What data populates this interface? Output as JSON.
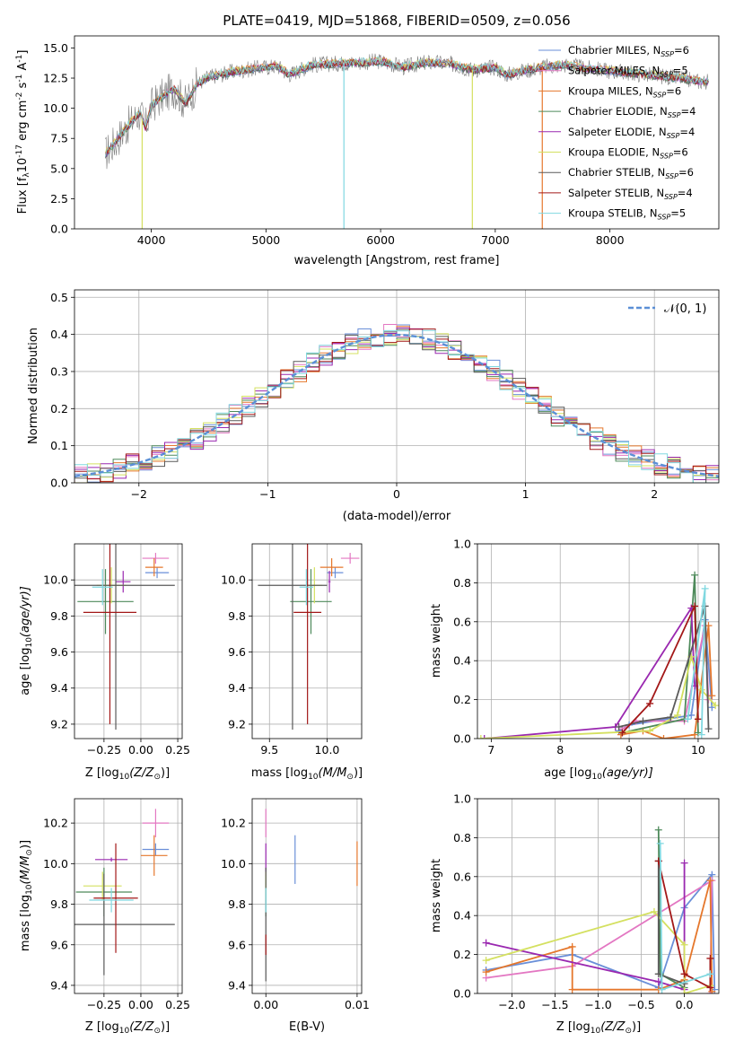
{
  "figure_title": "PLATE=0419, MJD=51868, FIBERID=0509, z=0.056",
  "colors": {
    "Chabrier MILES": "#6a8fd8",
    "Salpeter MILES": "#e377c2",
    "Kroupa MILES": "#e5772c",
    "Chabrier ELODIE": "#4e8a5b",
    "Salpeter ELODIE": "#9a28b0",
    "Kroupa ELODIE": "#d4e060",
    "Chabrier STELIB": "#5a5a5a",
    "Salpeter STELIB": "#a31818",
    "Kroupa STELIB": "#80d8e0",
    "data": "#7f7f7f"
  },
  "chart_data": [
    {
      "type": "line",
      "title": "PLATE=0419, MJD=51868, FIBERID=0509, z=0.056",
      "xlabel": "wavelength [Angstrom, rest frame]",
      "ylabel": "Flux [f",
      "ylabel_lambda": "λ",
      "ylabel_rest": "10",
      "ylabel_exp": "-17",
      "ylabel_units": " erg cm",
      "ylabel_units_exp": "-2",
      "ylabel_units2": " s",
      "ylabel_units2_exp": "-1",
      "ylabel_units3": " A",
      "ylabel_units3_exp": "-1",
      "ylabel_close": "]",
      "xlim": [
        3330,
        8950
      ],
      "ylim": [
        0,
        16
      ],
      "xticks": [
        4000,
        5000,
        6000,
        7000,
        8000
      ],
      "yticks": [
        0.0,
        2.5,
        5.0,
        7.5,
        10.0,
        12.5,
        15.0
      ],
      "grid": false,
      "legend_position": "top-right",
      "spectrum_trend": {
        "x": [
          3600,
          3700,
          3800,
          3900,
          3950,
          4000,
          4100,
          4200,
          4300,
          4400,
          4500,
          4700,
          4900,
          5100,
          5200,
          5400,
          5600,
          5800,
          6000,
          6200,
          6400,
          6600,
          6800,
          7000,
          7100,
          7200,
          7400,
          7600,
          7800,
          8000,
          8200,
          8400,
          8600,
          8800
        ],
        "y": [
          6.2,
          7.4,
          8.6,
          9.6,
          8.4,
          10.2,
          11.0,
          11.6,
          10.4,
          12.0,
          12.6,
          13.0,
          13.3,
          13.5,
          12.8,
          13.6,
          13.7,
          13.8,
          13.9,
          13.4,
          13.8,
          13.7,
          13.2,
          13.4,
          12.8,
          13.0,
          13.4,
          13.6,
          13.3,
          13.1,
          12.9,
          12.7,
          12.5,
          12.2
        ]
      },
      "series": [
        {
          "name": "Chabrier MILES",
          "n_ssp": "6"
        },
        {
          "name": "Salpeter MILES",
          "n_ssp": "5"
        },
        {
          "name": "Kroupa MILES",
          "n_ssp": "6"
        },
        {
          "name": "Chabrier ELODIE",
          "n_ssp": "4"
        },
        {
          "name": "Salpeter ELODIE",
          "n_ssp": "4"
        },
        {
          "name": "Kroupa ELODIE",
          "n_ssp": "6"
        },
        {
          "name": "Chabrier STELIB",
          "n_ssp": "6"
        },
        {
          "name": "Salpeter STELIB",
          "n_ssp": "4"
        },
        {
          "name": "Kroupa STELIB",
          "n_ssp": "5"
        }
      ],
      "legend_n_label": "N",
      "legend_n_sub": "SSP"
    },
    {
      "type": "line",
      "xlabel": "(data-model)/error",
      "ylabel": "Normed distribution",
      "xlim": [
        -2.5,
        2.5
      ],
      "ylim": [
        0,
        0.52
      ],
      "xticks": [
        -2,
        -1,
        0,
        1,
        2
      ],
      "xtick_labels": [
        "−2",
        "−1",
        "0",
        "1",
        "2"
      ],
      "yticks": [
        0.0,
        0.1,
        0.2,
        0.3,
        0.4,
        0.5
      ],
      "grid": true,
      "legend_position": "top-right",
      "reference_curve": {
        "name": "𝒩(0, 1)",
        "mu": 0,
        "sigma": 1
      },
      "bin_width": 0.1
    },
    {
      "type": "scatter",
      "xlabel": "Z [log",
      "xlabel_sub": "10",
      "xlabel_rest": "(Z/Z",
      "xlabel_sun": "⊙",
      "xlabel_close": ")]",
      "ylabel": "age  [log",
      "ylabel_sub": "10",
      "ylabel_rest": "(age/yr)]",
      "xlim": [
        -0.45,
        0.28
      ],
      "ylim": [
        9.12,
        10.2
      ],
      "xticks": [
        -0.25,
        0.0,
        0.25
      ],
      "xtick_labels": [
        "−0.25",
        "0.00",
        "0.25"
      ],
      "yticks": [
        9.2,
        9.4,
        9.6,
        9.8,
        10.0
      ],
      "points": [
        {
          "series": "Chabrier MILES",
          "x": 0.11,
          "xerr": 0.08,
          "y": 10.04,
          "yerr": 0.03
        },
        {
          "series": "Salpeter MILES",
          "x": 0.1,
          "xerr": 0.09,
          "y": 10.12,
          "yerr": 0.03
        },
        {
          "series": "Kroupa MILES",
          "x": 0.09,
          "xerr": 0.06,
          "y": 10.07,
          "yerr": 0.05
        },
        {
          "series": "Chabrier ELODIE",
          "x": -0.24,
          "xerr": 0.19,
          "y": 9.88,
          "yerr": 0.18
        },
        {
          "series": "Salpeter ELODIE",
          "x": -0.12,
          "xerr": 0.05,
          "y": 9.99,
          "yerr": 0.06
        },
        {
          "series": "Kroupa ELODIE",
          "x": -0.2,
          "xerr": 0.1,
          "y": 9.97,
          "yerr": 0.1
        },
        {
          "series": "Chabrier STELIB",
          "x": -0.17,
          "xerr": 0.4,
          "y": 9.97,
          "yerr": 0.8
        },
        {
          "series": "Salpeter STELIB",
          "x": -0.21,
          "xerr": 0.18,
          "y": 9.82,
          "yerr": 0.62
        },
        {
          "series": "Kroupa STELIB",
          "x": -0.26,
          "xerr": 0.07,
          "y": 9.96,
          "yerr": 0.1
        }
      ]
    },
    {
      "type": "scatter",
      "xlabel": "mass [log",
      "xlabel_sub": "10",
      "xlabel_rest": "(M/M",
      "xlabel_sun": "⊙",
      "xlabel_close": ")]",
      "xlim": [
        9.35,
        10.3
      ],
      "ylim": [
        9.12,
        10.2
      ],
      "xticks": [
        9.5,
        10.0
      ],
      "xtick_labels": [
        "9.5",
        "10.0"
      ],
      "yticks": [
        9.2,
        9.4,
        9.6,
        9.8,
        10.0
      ],
      "points": [
        {
          "series": "Chabrier MILES",
          "x": 10.07,
          "xerr": 0.07,
          "y": 10.04,
          "yerr": 0.03
        },
        {
          "series": "Salpeter MILES",
          "x": 10.2,
          "xerr": 0.08,
          "y": 10.12,
          "yerr": 0.03
        },
        {
          "series": "Kroupa MILES",
          "x": 10.04,
          "xerr": 0.1,
          "y": 10.07,
          "yerr": 0.05
        },
        {
          "series": "Chabrier ELODIE",
          "x": 9.86,
          "xerr": 0.18,
          "y": 9.88,
          "yerr": 0.18
        },
        {
          "series": "Salpeter ELODIE",
          "x": 10.02,
          "xerr": 0.01,
          "y": 9.99,
          "yerr": 0.06
        },
        {
          "series": "Kroupa ELODIE",
          "x": 9.89,
          "xerr": 0.07,
          "y": 9.97,
          "yerr": 0.1
        },
        {
          "series": "Chabrier STELIB",
          "x": 9.7,
          "xerr": 0.3,
          "y": 9.97,
          "yerr": 0.8
        },
        {
          "series": "Salpeter STELIB",
          "x": 9.83,
          "xerr": 0.12,
          "y": 9.82,
          "yerr": 0.62
        },
        {
          "series": "Kroupa STELIB",
          "x": 9.82,
          "xerr": 0.06,
          "y": 9.96,
          "yerr": 0.1
        }
      ]
    },
    {
      "type": "line",
      "xlabel": "age  [log",
      "xlabel_sub": "10",
      "xlabel_rest": "(age/yr)]",
      "ylabel": "mass weight",
      "xlim": [
        6.8,
        10.3
      ],
      "ylim": [
        0,
        1.0
      ],
      "xticks": [
        7,
        8,
        9,
        10
      ],
      "yticks": [
        0.0,
        0.2,
        0.4,
        0.6,
        0.8,
        1.0
      ],
      "grid": true,
      "series": [
        {
          "name": "Chabrier MILES",
          "x": [
            8.85,
            9.0,
            9.9,
            10.1,
            10.2
          ],
          "y": [
            0.04,
            0.07,
            0.12,
            0.61,
            0.16
          ]
        },
        {
          "name": "Salpeter MILES",
          "x": [
            8.9,
            9.1,
            9.8,
            10.1,
            10.15
          ],
          "y": [
            0.05,
            0.09,
            0.09,
            0.58,
            0.2
          ]
        },
        {
          "name": "Kroupa MILES",
          "x": [
            8.88,
            9.2,
            9.5,
            9.95,
            10.15,
            10.2
          ],
          "y": [
            0.02,
            0.04,
            0.0,
            0.02,
            0.58,
            0.22
          ]
        },
        {
          "name": "Chabrier ELODIE",
          "x": [
            8.9,
            9.8,
            9.95,
            10.0
          ],
          "y": [
            0.03,
            0.1,
            0.84,
            0.03
          ]
        },
        {
          "name": "Salpeter ELODIE",
          "x": [
            6.9,
            8.8,
            9.9,
            9.95
          ],
          "y": [
            0.0,
            0.06,
            0.67,
            0.27
          ]
        },
        {
          "name": "Kroupa ELODIE",
          "x": [
            6.85,
            9.3,
            9.7,
            9.9,
            10.05,
            10.25
          ],
          "y": [
            0.0,
            0.04,
            0.12,
            0.42,
            0.25,
            0.17
          ]
        },
        {
          "name": "Chabrier STELIB",
          "x": [
            8.85,
            9.2,
            9.6,
            10.1,
            10.15
          ],
          "y": [
            0.06,
            0.09,
            0.11,
            0.68,
            0.05
          ]
        },
        {
          "name": "Salpeter STELIB",
          "x": [
            8.9,
            9.3,
            9.95,
            10.0
          ],
          "y": [
            0.03,
            0.18,
            0.68,
            0.1
          ]
        },
        {
          "name": "Kroupa STELIB",
          "x": [
            9.85,
            10.1,
            10.05
          ],
          "y": [
            0.1,
            0.77,
            0.02
          ]
        }
      ]
    },
    {
      "type": "scatter",
      "xlabel": "Z [log",
      "xlabel_sub": "10",
      "xlabel_rest": "(Z/Z",
      "xlabel_sun": "⊙",
      "xlabel_close": ")]",
      "ylabel": "mass [log",
      "ylabel_sub": "10",
      "ylabel_rest": "(M/M",
      "ylabel_sun": "⊙",
      "ylabel_close": ")]",
      "xlim": [
        -0.45,
        0.28
      ],
      "ylim": [
        9.36,
        10.32
      ],
      "xticks": [
        -0.25,
        0.0,
        0.25
      ],
      "xtick_labels": [
        "−0.25",
        "0.00",
        "0.25"
      ],
      "yticks": [
        9.4,
        9.6,
        9.8,
        10.0,
        10.2
      ],
      "points": [
        {
          "series": "Chabrier MILES",
          "x": 0.1,
          "xerr": 0.09,
          "y": 10.07,
          "yerr": 0.03
        },
        {
          "series": "Salpeter MILES",
          "x": 0.1,
          "xerr": 0.09,
          "y": 10.2,
          "yerr": 0.07
        },
        {
          "series": "Kroupa MILES",
          "x": 0.09,
          "xerr": 0.09,
          "y": 10.04,
          "yerr": 0.1
        },
        {
          "series": "Chabrier ELODIE",
          "x": -0.25,
          "xerr": 0.19,
          "y": 9.86,
          "yerr": 0.12
        },
        {
          "series": "Salpeter ELODIE",
          "x": -0.2,
          "xerr": 0.11,
          "y": 10.02,
          "yerr": 0.01
        },
        {
          "series": "Kroupa ELODIE",
          "x": -0.26,
          "xerr": 0.13,
          "y": 9.89,
          "yerr": 0.07
        },
        {
          "series": "Chabrier STELIB",
          "x": -0.25,
          "xerr": 0.48,
          "y": 9.7,
          "yerr": 0.25
        },
        {
          "series": "Salpeter STELIB",
          "x": -0.17,
          "xerr": 0.15,
          "y": 9.83,
          "yerr": 0.27
        },
        {
          "series": "Kroupa STELIB",
          "x": -0.2,
          "xerr": 0.15,
          "y": 9.82,
          "yerr": 0.06
        }
      ]
    },
    {
      "type": "scatter",
      "xlabel": "E(B-V)",
      "xlim": [
        -0.0015,
        0.0105
      ],
      "ylim": [
        9.36,
        10.32
      ],
      "xticks": [
        0.0,
        0.01
      ],
      "xtick_labels": [
        "0.00",
        "0.01"
      ],
      "yticks": [
        9.4,
        9.6,
        9.8,
        10.0,
        10.2
      ],
      "points": [
        {
          "series": "Chabrier MILES",
          "x": 0.0032,
          "y": 10.02,
          "yerr": 0.12
        },
        {
          "series": "Salpeter MILES",
          "x": 0.0,
          "y": 10.2,
          "yerr": 0.07
        },
        {
          "series": "Kroupa MILES",
          "x": 0.01,
          "y": 10.0,
          "yerr": 0.11
        },
        {
          "series": "Chabrier ELODIE",
          "x": 0.0,
          "y": 9.86,
          "yerr": 0.12
        },
        {
          "series": "Salpeter ELODIE",
          "x": 0.0,
          "y": 10.02,
          "yerr": 0.08
        },
        {
          "series": "Kroupa ELODIE",
          "x": 0.0,
          "y": 9.89,
          "yerr": 0.07
        },
        {
          "series": "Chabrier STELIB",
          "x": 0.0,
          "y": 9.7,
          "yerr": 0.28
        },
        {
          "series": "Salpeter STELIB",
          "x": 0.0,
          "y": 9.6,
          "yerr": 0.05
        },
        {
          "series": "Kroupa STELIB",
          "x": 0.0,
          "y": 9.82,
          "yerr": 0.06
        }
      ]
    },
    {
      "type": "line",
      "xlabel": "Z [log",
      "xlabel_sub": "10",
      "xlabel_rest": "(Z/Z",
      "xlabel_sun": "⊙",
      "xlabel_close": ")]",
      "ylabel": "mass weight",
      "xlim": [
        -2.4,
        0.4
      ],
      "ylim": [
        0,
        1.0
      ],
      "xticks": [
        -2.0,
        -1.5,
        -1.0,
        -0.5,
        0.0
      ],
      "xtick_labels": [
        "−2.0",
        "−1.5",
        "−1.0",
        "−0.5",
        "0.0"
      ],
      "yticks": [
        0.0,
        0.2,
        0.4,
        0.6,
        0.8,
        1.0
      ],
      "grid": true,
      "series": [
        {
          "name": "Chabrier MILES",
          "x": [
            -2.3,
            -1.3,
            -0.3,
            0.0,
            0.32,
            0.35
          ],
          "y": [
            0.12,
            0.2,
            0.03,
            0.44,
            0.61,
            0.02
          ]
        },
        {
          "name": "Salpeter MILES",
          "x": [
            -2.3,
            -1.3,
            0.32,
            0.3
          ],
          "y": [
            0.08,
            0.14,
            0.58,
            0.0
          ]
        },
        {
          "name": "Kroupa MILES",
          "x": [
            -2.3,
            -1.3,
            -1.3,
            -0.3,
            0.0,
            0.3,
            0.32
          ],
          "y": [
            0.11,
            0.24,
            0.02,
            0.02,
            0.07,
            0.58,
            0.01
          ]
        },
        {
          "name": "Chabrier ELODIE",
          "x": [
            -0.3,
            -0.28,
            0.0
          ],
          "y": [
            0.84,
            0.1,
            0.03
          ]
        },
        {
          "name": "Salpeter ELODIE",
          "x": [
            -2.3,
            -0.3,
            0.0,
            0.0
          ],
          "y": [
            0.26,
            0.06,
            0.02,
            0.67
          ]
        },
        {
          "name": "Kroupa ELODIE",
          "x": [
            -2.3,
            -0.35,
            0.0,
            0.0,
            0.3
          ],
          "y": [
            0.17,
            0.42,
            0.25,
            0.0,
            0.04
          ]
        },
        {
          "name": "Chabrier STELIB",
          "x": [
            -0.3,
            -0.3,
            0.0
          ],
          "y": [
            0.68,
            0.1,
            0.05
          ]
        },
        {
          "name": "Salpeter STELIB",
          "x": [
            -0.3,
            0.0,
            0.3,
            0.3
          ],
          "y": [
            0.68,
            0.1,
            0.03,
            0.18
          ]
        },
        {
          "name": "Kroupa STELIB",
          "x": [
            -0.28,
            -0.26,
            0.3
          ],
          "y": [
            0.77,
            0.02,
            0.1
          ]
        }
      ]
    }
  ]
}
